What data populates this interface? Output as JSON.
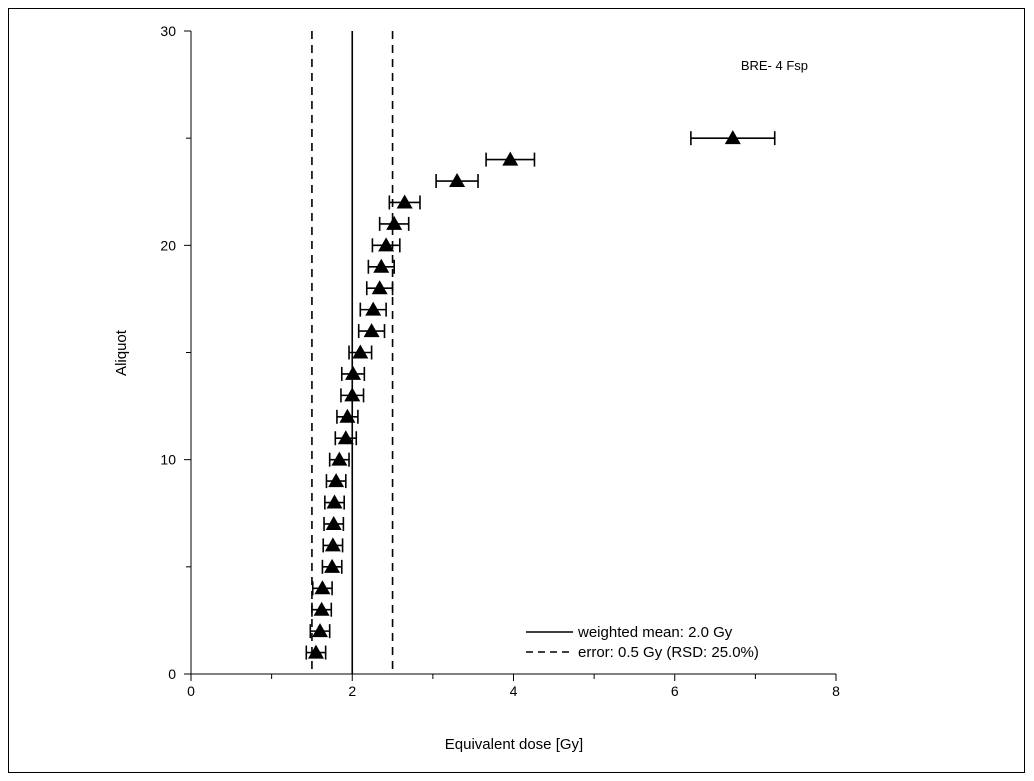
{
  "chart_data": {
    "type": "scatter",
    "title": "BRE- 4 Fsp",
    "xlabel": "Equivalent dose [Gy]",
    "ylabel": "Aliquot",
    "xlim": [
      0,
      8
    ],
    "ylim": [
      0,
      30
    ],
    "xticks": [
      0,
      2,
      4,
      6,
      8
    ],
    "yticks": [
      0,
      10,
      20,
      30
    ],
    "grid": false,
    "legend_position": "bottom-right",
    "legend": [
      {
        "label": "weighted mean: 2.0 Gy",
        "style": "solid"
      },
      {
        "label": "error: 0.5 Gy (RSD: 25.0%)",
        "style": "dashed"
      }
    ],
    "reference_lines": {
      "mean": 2.0,
      "lower": 1.5,
      "upper": 2.5
    },
    "series": [
      {
        "marker": "triangle",
        "points": [
          {
            "aliquot": 1,
            "dose": 1.55,
            "err": 0.12
          },
          {
            "aliquot": 2,
            "dose": 1.6,
            "err": 0.12
          },
          {
            "aliquot": 3,
            "dose": 1.62,
            "err": 0.12
          },
          {
            "aliquot": 4,
            "dose": 1.63,
            "err": 0.12
          },
          {
            "aliquot": 5,
            "dose": 1.75,
            "err": 0.12
          },
          {
            "aliquot": 6,
            "dose": 1.76,
            "err": 0.12
          },
          {
            "aliquot": 7,
            "dose": 1.77,
            "err": 0.12
          },
          {
            "aliquot": 8,
            "dose": 1.78,
            "err": 0.12
          },
          {
            "aliquot": 9,
            "dose": 1.8,
            "err": 0.12
          },
          {
            "aliquot": 10,
            "dose": 1.84,
            "err": 0.12
          },
          {
            "aliquot": 11,
            "dose": 1.92,
            "err": 0.13
          },
          {
            "aliquot": 12,
            "dose": 1.94,
            "err": 0.13
          },
          {
            "aliquot": 13,
            "dose": 2.0,
            "err": 0.14
          },
          {
            "aliquot": 14,
            "dose": 2.01,
            "err": 0.14
          },
          {
            "aliquot": 15,
            "dose": 2.1,
            "err": 0.14
          },
          {
            "aliquot": 16,
            "dose": 2.24,
            "err": 0.16
          },
          {
            "aliquot": 17,
            "dose": 2.26,
            "err": 0.16
          },
          {
            "aliquot": 18,
            "dose": 2.34,
            "err": 0.16
          },
          {
            "aliquot": 19,
            "dose": 2.36,
            "err": 0.16
          },
          {
            "aliquot": 20,
            "dose": 2.42,
            "err": 0.17
          },
          {
            "aliquot": 21,
            "dose": 2.52,
            "err": 0.18
          },
          {
            "aliquot": 22,
            "dose": 2.65,
            "err": 0.19
          },
          {
            "aliquot": 23,
            "dose": 3.3,
            "err": 0.26
          },
          {
            "aliquot": 24,
            "dose": 3.96,
            "err": 0.3
          },
          {
            "aliquot": 25,
            "dose": 6.72,
            "err": 0.52
          }
        ]
      }
    ]
  }
}
